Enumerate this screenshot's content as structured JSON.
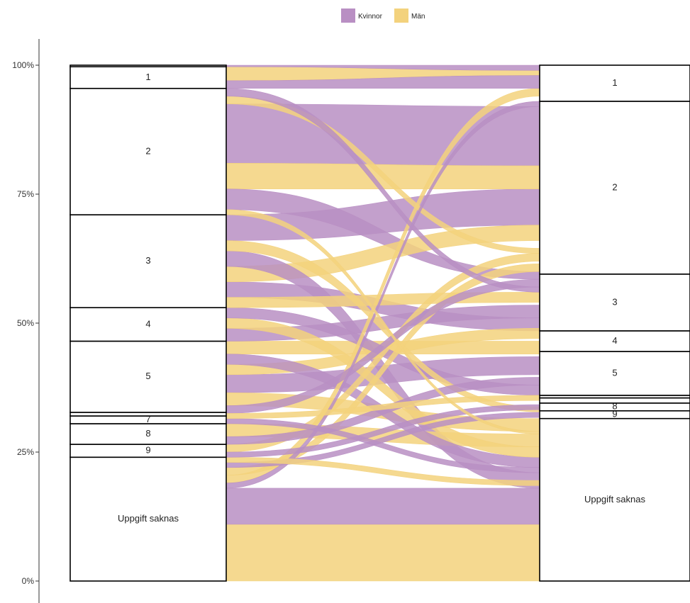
{
  "chart_data": {
    "type": "alluvial",
    "y_axis": {
      "range": [
        0,
        100
      ],
      "ticks": [
        {
          "value": 0,
          "label": "0%"
        },
        {
          "value": 25,
          "label": "25%"
        },
        {
          "value": 50,
          "label": "50%"
        },
        {
          "value": 75,
          "label": "75%"
        },
        {
          "value": 100,
          "label": "100%"
        }
      ]
    },
    "legend": {
      "position": "top",
      "entries": [
        {
          "label": "Kvinnor",
          "color": "#b98fc3"
        },
        {
          "label": "Män",
          "color": "#f3d27d"
        }
      ]
    },
    "colors": {
      "Kvinnor": "#b98fc3",
      "Män": "#f3d27d",
      "stroke": "#000000"
    },
    "axis1_strata": [
      {
        "label": "Uppgift saknas",
        "start": 0,
        "end": 24
      },
      {
        "label": "9",
        "start": 24,
        "end": 26.5
      },
      {
        "label": "8",
        "start": 26.5,
        "end": 30.5
      },
      {
        "label": "7",
        "start": 30.5,
        "end": 32
      },
      {
        "label": "",
        "start": 32,
        "end": 32.7
      },
      {
        "label": "5",
        "start": 32.7,
        "end": 46.5
      },
      {
        "label": "4",
        "start": 46.5,
        "end": 53
      },
      {
        "label": "3",
        "start": 53,
        "end": 71
      },
      {
        "label": "2",
        "start": 71,
        "end": 95.5
      },
      {
        "label": "1",
        "start": 95.5,
        "end": 99.7
      },
      {
        "label": "",
        "start": 99.7,
        "end": 100
      }
    ],
    "axis2_strata": [
      {
        "label": "Uppgift saknas",
        "start": 0,
        "end": 31.5
      },
      {
        "label": "9",
        "start": 31.5,
        "end": 33
      },
      {
        "label": "8",
        "start": 33,
        "end": 34.5
      },
      {
        "label": "",
        "start": 34.5,
        "end": 35.5
      },
      {
        "label": "",
        "start": 35.5,
        "end": 36
      },
      {
        "label": "5",
        "start": 36,
        "end": 44.5
      },
      {
        "label": "4",
        "start": 44.5,
        "end": 48.5
      },
      {
        "label": "3",
        "start": 48.5,
        "end": 59.5
      },
      {
        "label": "2",
        "start": 59.5,
        "end": 93
      },
      {
        "label": "1",
        "start": 93,
        "end": 100
      }
    ],
    "flows": [
      {
        "group": "Män",
        "from_start": 0,
        "from_end": 11,
        "to_start": 0,
        "to_end": 11
      },
      {
        "group": "Kvinnor",
        "from_start": 11,
        "from_end": 18,
        "to_start": 11,
        "to_end": 18
      },
      {
        "group": "Kvinnor",
        "from_start": 18,
        "from_end": 19,
        "to_start": 92,
        "to_end": 93
      },
      {
        "group": "Män",
        "from_start": 19,
        "from_end": 20.5,
        "to_start": 94,
        "to_end": 95.5
      },
      {
        "group": "Män",
        "from_start": 20.5,
        "from_end": 22,
        "to_start": 60,
        "to_end": 61.5
      },
      {
        "group": "Kvinnor",
        "from_start": 22,
        "from_end": 23,
        "to_start": 31.7,
        "to_end": 32.7
      },
      {
        "group": "Män",
        "from_start": 23,
        "from_end": 24,
        "to_start": 18.5,
        "to_end": 19.5
      },
      {
        "group": "Kvinnor",
        "from_start": 24,
        "from_end": 25,
        "to_start": 33.2,
        "to_end": 34.2
      },
      {
        "group": "Män",
        "from_start": 25,
        "from_end": 26.5,
        "to_start": 62,
        "to_end": 63.5
      },
      {
        "group": "Kvinnor",
        "from_start": 26.5,
        "from_end": 28,
        "to_start": 38,
        "to_end": 39.5
      },
      {
        "group": "Män",
        "from_start": 28,
        "from_end": 30.5,
        "to_start": 26,
        "to_end": 28.5
      },
      {
        "group": "Kvinnor",
        "from_start": 30.5,
        "from_end": 31.5,
        "to_start": 21,
        "to_end": 22
      },
      {
        "group": "Män",
        "from_start": 31.5,
        "from_end": 32.5,
        "to_start": 35,
        "to_end": 36
      },
      {
        "group": "Kvinnor",
        "from_start": 32.5,
        "from_end": 34,
        "to_start": 57,
        "to_end": 58.5
      },
      {
        "group": "Män",
        "from_start": 34,
        "from_end": 36.5,
        "to_start": 29,
        "to_end": 31.5
      },
      {
        "group": "Kvinnor",
        "from_start": 36.5,
        "from_end": 40,
        "to_start": 40,
        "to_end": 43.5
      },
      {
        "group": "Män",
        "from_start": 40,
        "from_end": 42,
        "to_start": 47,
        "to_end": 49
      },
      {
        "group": "Kvinnor",
        "from_start": 42,
        "from_end": 44,
        "to_start": 22,
        "to_end": 24
      },
      {
        "group": "Män",
        "from_start": 44,
        "from_end": 46.5,
        "to_start": 44,
        "to_end": 46.5
      },
      {
        "group": "Kvinnor",
        "from_start": 46.5,
        "from_end": 49,
        "to_start": 51,
        "to_end": 53.5
      },
      {
        "group": "Män",
        "from_start": 49,
        "from_end": 51,
        "to_start": 24,
        "to_end": 26
      },
      {
        "group": "Kvinnor",
        "from_start": 51,
        "from_end": 53,
        "to_start": 36,
        "to_end": 38
      },
      {
        "group": "Män",
        "from_start": 53,
        "from_end": 55,
        "to_start": 54,
        "to_end": 56
      },
      {
        "group": "Kvinnor",
        "from_start": 55,
        "from_end": 58,
        "to_start": 48.5,
        "to_end": 51
      },
      {
        "group": "Män",
        "from_start": 58,
        "from_end": 61,
        "to_start": 66,
        "to_end": 69
      },
      {
        "group": "Kvinnor",
        "from_start": 61,
        "from_end": 64,
        "to_start": 18,
        "to_end": 21
      },
      {
        "group": "Män",
        "from_start": 64,
        "from_end": 66,
        "to_start": 32.8,
        "to_end": 33.8
      },
      {
        "group": "Kvinnor",
        "from_start": 66,
        "from_end": 71,
        "to_start": 69,
        "to_end": 76
      },
      {
        "group": "Män",
        "from_start": 71,
        "from_end": 72,
        "to_start": 28.5,
        "to_end": 29
      },
      {
        "group": "Kvinnor",
        "from_start": 72,
        "from_end": 76,
        "to_start": 58.5,
        "to_end": 60
      },
      {
        "group": "Män",
        "from_start": 76,
        "from_end": 81,
        "to_start": 76,
        "to_end": 80.5
      },
      {
        "group": "Kvinnor",
        "from_start": 81,
        "from_end": 92.5,
        "to_start": 80.5,
        "to_end": 92
      },
      {
        "group": "Män",
        "from_start": 92.5,
        "from_end": 94,
        "to_start": 63.5,
        "to_end": 64.5
      },
      {
        "group": "Kvinnor",
        "from_start": 94,
        "from_end": 95.5,
        "to_start": 56,
        "to_end": 57
      },
      {
        "group": "Kvinnor",
        "from_start": 95.5,
        "from_end": 97,
        "to_start": 95.5,
        "to_end": 98
      },
      {
        "group": "Män",
        "from_start": 97,
        "from_end": 99.7,
        "to_start": 98,
        "to_end": 99
      },
      {
        "group": "Kvinnor",
        "from_start": 99.7,
        "from_end": 100,
        "to_start": 99,
        "to_end": 100
      }
    ]
  }
}
